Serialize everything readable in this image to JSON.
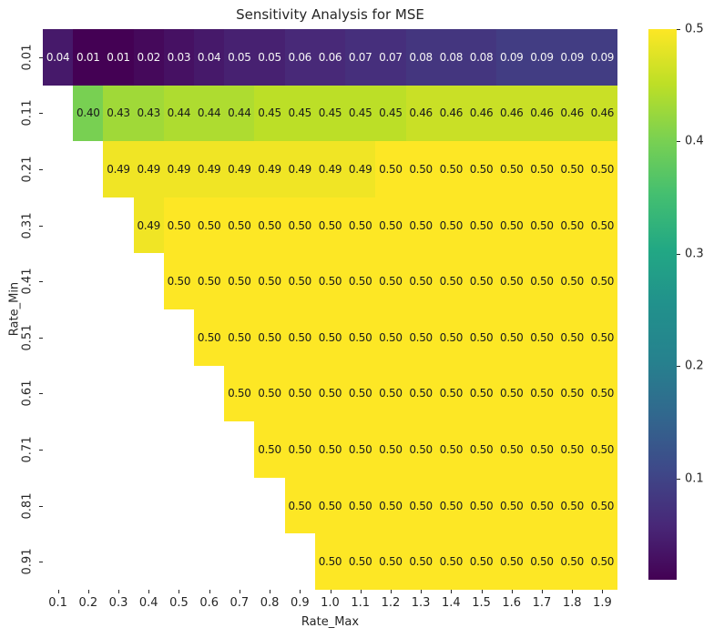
{
  "chart_data": {
    "type": "heatmap",
    "title": "Sensitivity Analysis for MSE",
    "xlabel": "Rate_Max",
    "ylabel": "Rate_Min",
    "x_ticks": [
      "0.1",
      "0.2",
      "0.3",
      "0.4",
      "0.5",
      "0.6",
      "0.7",
      "0.8",
      "0.9",
      "1.0",
      "1.1",
      "1.2",
      "1.3",
      "1.4",
      "1.5",
      "1.6",
      "1.7",
      "1.8",
      "1.9"
    ],
    "y_ticks": [
      "0.01",
      "0.11",
      "0.21",
      "0.31",
      "0.41",
      "0.51",
      "0.61",
      "0.71",
      "0.81",
      "0.91"
    ],
    "colormap": "viridis",
    "vmin": 0.01,
    "vmax": 0.5,
    "colorbar_ticks": [
      0.5,
      0.4,
      0.3,
      0.2,
      0.1
    ],
    "legend_position": "right",
    "grid": false,
    "rows": [
      {
        "rate_min": "0.01",
        "start_col": 0,
        "values": [
          0.04,
          0.01,
          0.01,
          0.02,
          0.03,
          0.04,
          0.05,
          0.05,
          0.06,
          0.06,
          0.07,
          0.07,
          0.08,
          0.08,
          0.08,
          0.09,
          0.09,
          0.09,
          0.09
        ]
      },
      {
        "rate_min": "0.11",
        "start_col": 1,
        "values": [
          0.4,
          0.43,
          0.43,
          0.44,
          0.44,
          0.44,
          0.45,
          0.45,
          0.45,
          0.45,
          0.45,
          0.46,
          0.46,
          0.46,
          0.46,
          0.46,
          0.46,
          0.46
        ]
      },
      {
        "rate_min": "0.21",
        "start_col": 2,
        "values": [
          0.49,
          0.49,
          0.49,
          0.49,
          0.49,
          0.49,
          0.49,
          0.49,
          0.49,
          0.5,
          0.5,
          0.5,
          0.5,
          0.5,
          0.5,
          0.5,
          0.5
        ]
      },
      {
        "rate_min": "0.31",
        "start_col": 3,
        "values": [
          0.49,
          0.5,
          0.5,
          0.5,
          0.5,
          0.5,
          0.5,
          0.5,
          0.5,
          0.5,
          0.5,
          0.5,
          0.5,
          0.5,
          0.5,
          0.5
        ]
      },
      {
        "rate_min": "0.41",
        "start_col": 4,
        "values": [
          0.5,
          0.5,
          0.5,
          0.5,
          0.5,
          0.5,
          0.5,
          0.5,
          0.5,
          0.5,
          0.5,
          0.5,
          0.5,
          0.5,
          0.5
        ]
      },
      {
        "rate_min": "0.51",
        "start_col": 5,
        "values": [
          0.5,
          0.5,
          0.5,
          0.5,
          0.5,
          0.5,
          0.5,
          0.5,
          0.5,
          0.5,
          0.5,
          0.5,
          0.5,
          0.5
        ]
      },
      {
        "rate_min": "0.61",
        "start_col": 6,
        "values": [
          0.5,
          0.5,
          0.5,
          0.5,
          0.5,
          0.5,
          0.5,
          0.5,
          0.5,
          0.5,
          0.5,
          0.5,
          0.5
        ]
      },
      {
        "rate_min": "0.71",
        "start_col": 7,
        "values": [
          0.5,
          0.5,
          0.5,
          0.5,
          0.5,
          0.5,
          0.5,
          0.5,
          0.5,
          0.5,
          0.5,
          0.5
        ]
      },
      {
        "rate_min": "0.81",
        "start_col": 8,
        "values": [
          0.5,
          0.5,
          0.5,
          0.5,
          0.5,
          0.5,
          0.5,
          0.5,
          0.5,
          0.5,
          0.5
        ]
      },
      {
        "rate_min": "0.91",
        "start_col": 9,
        "values": [
          0.5,
          0.5,
          0.5,
          0.5,
          0.5,
          0.5,
          0.5,
          0.5,
          0.5,
          0.5
        ]
      }
    ],
    "colors": {
      "annot_dark": "#1a1a1a",
      "annot_light": "#f5f5f5",
      "tick": "#262626",
      "background": "#ffffff",
      "viridis_anchors": [
        "#440154",
        "#482878",
        "#3e4989",
        "#31688e",
        "#26828e",
        "#21918c",
        "#22a884",
        "#44bf70",
        "#7ad151",
        "#bddf26",
        "#fde725"
      ]
    }
  }
}
